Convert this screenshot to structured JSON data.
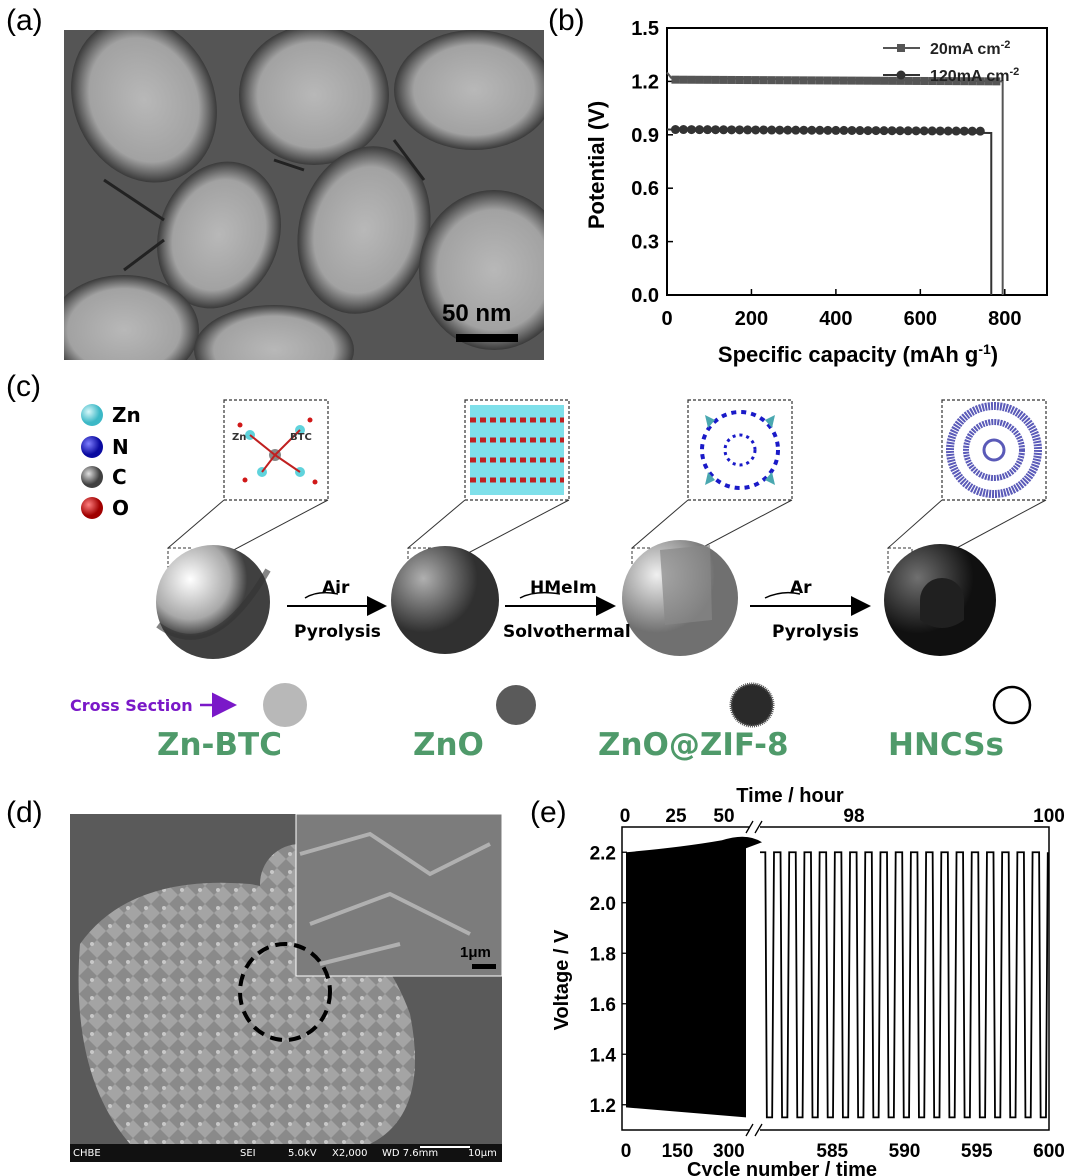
{
  "panels": {
    "a": {
      "label": "(a)",
      "scalebar": "50 nm"
    },
    "b": {
      "label": "(b)"
    },
    "c": {
      "label": "(c)"
    },
    "d": {
      "label": "(d)",
      "inset_scalebar": "1μm",
      "sem_info": {
        "lab": "CHBE",
        "mode": "SEI",
        "kv": "5.0kV",
        "mag": "X2,000",
        "wd": "WD 7.6mm",
        "scale": "10μm"
      }
    },
    "e": {
      "label": "(e)"
    }
  },
  "schematic": {
    "legend": [
      {
        "symbol": "Zn",
        "color": "#5fd3dc"
      },
      {
        "symbol": "N",
        "color": "#1a1ac8"
      },
      {
        "symbol": "C",
        "color": "#707070"
      },
      {
        "symbol": "O",
        "color": "#d01818"
      }
    ],
    "inset_labels": {
      "zn": "Zn",
      "btc": "BTC"
    },
    "arrows": [
      {
        "top": "Air",
        "bottom": "Pyrolysis"
      },
      {
        "top": "HMeIm",
        "bottom": "Solvothermal"
      },
      {
        "top": "Ar",
        "bottom": "Pyrolysis"
      }
    ],
    "cross_section_label": "Cross Section",
    "stages": [
      "Zn-BTC",
      "ZnO",
      "ZnO@ZIF-8",
      "HNCSs"
    ],
    "colors": {
      "stage_text": "#4f9a6a",
      "cross_section": "#7a18c8"
    }
  },
  "chart_data": [
    {
      "panel": "b",
      "type": "line",
      "xlabel": "Specific capacity (mAh g",
      "xlabel_sup": "-1",
      "xlabel_end": ")",
      "ylabel": "Potential (V)",
      "xlim": [
        0,
        900
      ],
      "ylim": [
        0,
        1.5
      ],
      "xticks": [
        0,
        200,
        400,
        600,
        800
      ],
      "yticks": [
        0.0,
        0.3,
        0.6,
        0.9,
        1.2,
        1.5
      ],
      "legend_position": "top-right",
      "series": [
        {
          "name": "20mA cm",
          "name_sup": "-2",
          "marker": "square",
          "color": "#555555",
          "flat_value": 1.21,
          "x_end": 795,
          "points": [
            [
              0,
              1.25
            ],
            [
              10,
              1.22
            ],
            [
              795,
              1.2
            ],
            [
              795,
              0
            ]
          ]
        },
        {
          "name": "120mA cm",
          "name_sup": "-2",
          "marker": "circle",
          "color": "#333333",
          "flat_value": 0.93,
          "x_end": 768,
          "points": [
            [
              0,
              0.93
            ],
            [
              768,
              0.91
            ],
            [
              768,
              0
            ]
          ]
        }
      ]
    },
    {
      "panel": "e",
      "type": "line",
      "xlabel": "Cycle number / time",
      "x2label": "Time / hour",
      "ylabel": "Voltage / V",
      "ylim": [
        1.1,
        2.3
      ],
      "yticks": [
        1.2,
        1.4,
        1.6,
        1.8,
        2.0,
        2.2
      ],
      "x_left_ticks": [
        0,
        150,
        300
      ],
      "x_left_range": [
        0,
        350
      ],
      "x_right_ticks": [
        585,
        590,
        595,
        600
      ],
      "x_right_range": [
        580,
        600
      ],
      "top_left_ticks": [
        0,
        25,
        50
      ],
      "top_right_ticks": [
        98,
        100
      ],
      "charge_voltage": 2.2,
      "discharge_voltage": 1.15,
      "cycles_shown": [
        581,
        600
      ]
    }
  ]
}
